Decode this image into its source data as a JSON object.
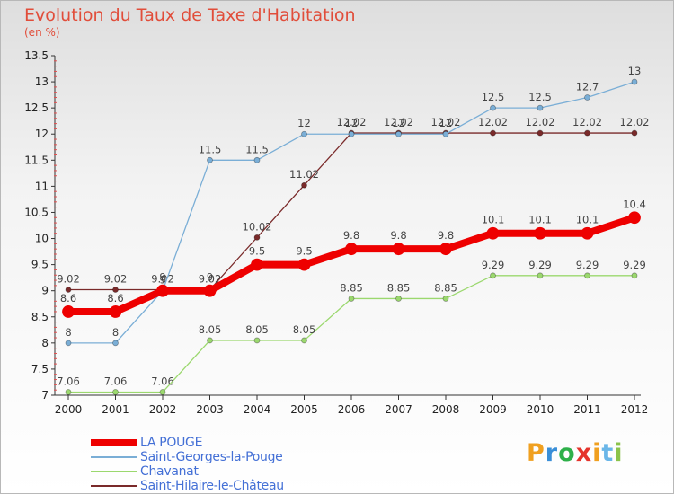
{
  "title": "Evolution du Taux de Taxe d'Habitation",
  "unit": "(en %)",
  "logo": {
    "text": "Proxiti",
    "colors": [
      "#f0a020",
      "#3a8fd8",
      "#2eb04a",
      "#e5342c",
      "#f0a020",
      "#6ab6e8",
      "#8bc34a"
    ]
  },
  "chart_data": {
    "type": "line",
    "title": "Evolution du Taux de Taxe d'Habitation",
    "ylabel": "(en %)",
    "xlabel": "",
    "x": [
      "2000",
      "2001",
      "2002",
      "2003",
      "2004",
      "2005",
      "2006",
      "2007",
      "2008",
      "2009",
      "2010",
      "2011",
      "2012"
    ],
    "ylim": [
      7,
      13.5
    ],
    "yticks": [
      "7",
      "7.5",
      "8",
      "8.5",
      "9",
      "9.5",
      "10",
      "10.5",
      "11",
      "11.5",
      "12",
      "12.5",
      "13",
      "13.5"
    ],
    "legend_position": "bottom-left",
    "series": [
      {
        "name": "Saint-Hilaire-le-Château",
        "color": "#7a2a2a",
        "values": [
          9.02,
          9.02,
          9.02,
          9.02,
          10.02,
          11.02,
          12.02,
          12.02,
          12.02,
          12.02,
          12.02,
          12.02,
          12.02
        ],
        "labels": [
          "9.02",
          "9.02",
          "9.02",
          "9.02",
          "10.02",
          "11.02",
          "12.02",
          "12.02",
          "12.02",
          "12.02",
          "12.02",
          "12.02",
          "12.02"
        ]
      },
      {
        "name": "Saint-Georges-la-Pouge",
        "color": "#7aaed6",
        "values": [
          8,
          8,
          9,
          11.5,
          11.5,
          12,
          12,
          12,
          12,
          12.5,
          12.5,
          12.7,
          13
        ],
        "labels": [
          "8",
          "8",
          "9",
          "11.5",
          "11.5",
          "12",
          "12",
          "12",
          "12",
          "12.5",
          "12.5",
          "12.7",
          "13"
        ]
      },
      {
        "name": "Chavanat",
        "color": "#9bd86e",
        "values": [
          7.06,
          7.06,
          7.06,
          8.05,
          8.05,
          8.05,
          8.85,
          8.85,
          8.85,
          9.29,
          9.29,
          9.29,
          9.29
        ],
        "labels": [
          "7.06",
          "7.06",
          "7.06",
          "8.05",
          "8.05",
          "8.05",
          "8.85",
          "8.85",
          "8.85",
          "9.29",
          "9.29",
          "9.29",
          "9.29"
        ]
      },
      {
        "name": "LA POUGE",
        "color": "#ee0000",
        "values": [
          8.6,
          8.6,
          9,
          9,
          9.5,
          9.5,
          9.8,
          9.8,
          9.8,
          10.1,
          10.1,
          10.1,
          10.4
        ],
        "labels": [
          "8.6",
          "8.6",
          "9",
          "9",
          "9.5",
          "9.5",
          "9.8",
          "9.8",
          "9.8",
          "10.1",
          "10.1",
          "10.1",
          "10.4"
        ]
      }
    ]
  },
  "legend": [
    {
      "label": "LA POUGE",
      "color": "#ee0000"
    },
    {
      "label": "Saint-Georges-la-Pouge",
      "color": "#7aaed6"
    },
    {
      "label": "Chavanat",
      "color": "#9bd86e"
    },
    {
      "label": "Saint-Hilaire-le-Château",
      "color": "#7a2a2a"
    }
  ]
}
